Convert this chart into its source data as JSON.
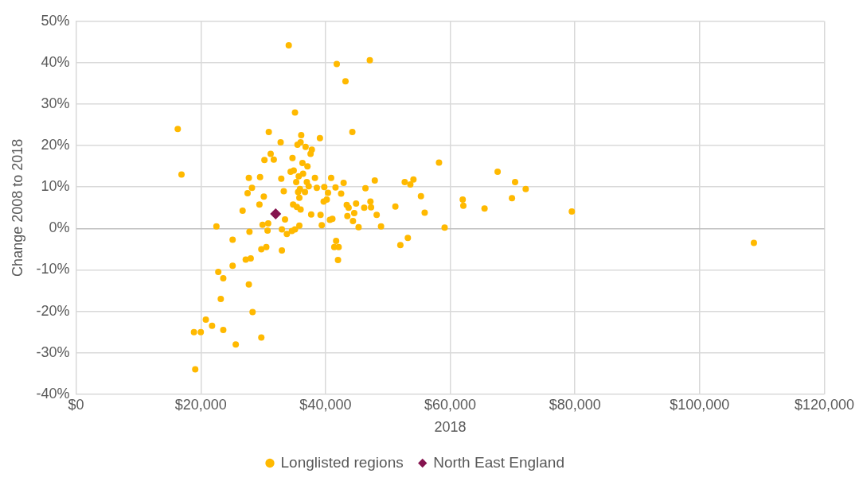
{
  "chart_data": {
    "type": "scatter",
    "xlabel": "2018",
    "ylabel": "Change 2008 to 2018",
    "xlim": [
      0,
      120000
    ],
    "xticks": [
      {
        "value": 0,
        "label": "$0"
      },
      {
        "value": 20000,
        "label": "$20,000"
      },
      {
        "value": 40000,
        "label": "$40,000"
      },
      {
        "value": 60000,
        "label": "$60,000"
      },
      {
        "value": 80000,
        "label": "$80,000"
      },
      {
        "value": 100000,
        "label": "$100,000"
      },
      {
        "value": 120000,
        "label": "$120,000"
      }
    ],
    "ylim": [
      -40,
      50
    ],
    "yticks": [
      {
        "value": -40,
        "label": "-40%"
      },
      {
        "value": -30,
        "label": "-30%"
      },
      {
        "value": -20,
        "label": "-20%"
      },
      {
        "value": -10,
        "label": "-10%"
      },
      {
        "value": 0,
        "label": "0%"
      },
      {
        "value": 10,
        "label": "10%"
      },
      {
        "value": 20,
        "label": "20%"
      },
      {
        "value": 30,
        "label": "30%"
      },
      {
        "value": 40,
        "label": "40%"
      },
      {
        "value": 50,
        "label": "50%"
      }
    ],
    "grid": true,
    "legend": "bottom",
    "series": [
      {
        "name": "Longlisted regions",
        "color": "#ffb900",
        "marker": "circle",
        "x": [
          16300,
          16900,
          18900,
          19100,
          20000,
          20800,
          21800,
          22500,
          22800,
          23200,
          23600,
          23600,
          25100,
          25100,
          25600,
          26700,
          27200,
          27500,
          27700,
          27700,
          27800,
          28000,
          28200,
          28300,
          29400,
          29500,
          29700,
          29700,
          29900,
          30100,
          30200,
          30500,
          30700,
          30800,
          30900,
          31200,
          31700,
          32800,
          32900,
          33000,
          33000,
          33300,
          33500,
          33800,
          34100,
          34400,
          34600,
          34700,
          34800,
          34900,
          35100,
          35100,
          35300,
          35400,
          35500,
          35600,
          35700,
          35800,
          35800,
          35900,
          36000,
          36000,
          36100,
          36300,
          36400,
          36700,
          36800,
          37000,
          37100,
          37300,
          37600,
          37700,
          37800,
          38300,
          38600,
          39100,
          39200,
          39400,
          39700,
          39800,
          40200,
          40400,
          40700,
          40900,
          41100,
          41400,
          41600,
          41700,
          41800,
          42000,
          42100,
          42500,
          42900,
          43200,
          43400,
          43500,
          43700,
          44300,
          44400,
          44600,
          44900,
          45300,
          46200,
          46400,
          47100,
          47200,
          47300,
          47900,
          48200,
          48900,
          51200,
          52000,
          52700,
          53200,
          53600,
          54100,
          55300,
          55900,
          58200,
          59100,
          62000,
          62100,
          65500,
          67600,
          69900,
          70400,
          72100,
          79500,
          108700
        ],
        "values": [
          24,
          13,
          -25,
          -34,
          -25,
          -22,
          -23.5,
          0.5,
          -10.5,
          -17,
          -12,
          -24.5,
          -2.7,
          -9,
          -28,
          4.3,
          -7.5,
          8.5,
          12.2,
          -13.5,
          -0.8,
          -7.2,
          9.8,
          -20.2,
          5.8,
          12.4,
          -5,
          -26.3,
          0.9,
          7.7,
          16.5,
          -4.5,
          -0.5,
          1.2,
          23.3,
          18,
          16.6,
          20.8,
          12,
          -0.2,
          -5.3,
          9,
          2.2,
          -1.3,
          44.2,
          13.7,
          -0.6,
          17,
          5.8,
          14,
          28,
          -0.2,
          11.2,
          5.2,
          20.2,
          8.8,
          12.6,
          7.4,
          0.7,
          9.5,
          4.6,
          20.8,
          22.5,
          15.8,
          13.2,
          8.8,
          19.7,
          11.2,
          15,
          10.2,
          18,
          3.4,
          19,
          12.2,
          9.8,
          21.8,
          3.3,
          0.8,
          6.5,
          10,
          7,
          8.6,
          2.1,
          12.2,
          2.3,
          -4.5,
          9.9,
          -3,
          39.7,
          -7.6,
          -4.5,
          8.4,
          11,
          35.5,
          5.7,
          3,
          5,
          23.3,
          1.8,
          3.7,
          6,
          0.3,
          5,
          9.7,
          40.6,
          6.5,
          5.1,
          11.6,
          3.3,
          0.5,
          5.3,
          -4,
          11.2,
          -2.3,
          10.6,
          11.8,
          7.8,
          3.8,
          15.9,
          0.2,
          7,
          5.5,
          4.8,
          13.7,
          7.3,
          11.2,
          9.5,
          4.1,
          -3.5
        ]
      },
      {
        "name": "North East England",
        "color": "#85144f",
        "marker": "diamond",
        "x": [
          32000
        ],
        "values": [
          3.5
        ]
      }
    ]
  }
}
